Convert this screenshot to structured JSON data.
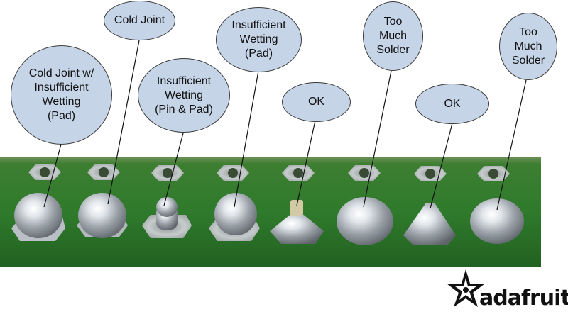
{
  "labels": [
    {
      "id": "cold-joint-wetting-pad",
      "text": "Cold Joint w/\nInsufficient\nWetting\n(Pad)"
    },
    {
      "id": "cold-joint",
      "text": "Cold Joint"
    },
    {
      "id": "insufficient-wetting-pin-pad",
      "text": "Insufficient\nWetting\n(Pin & Pad)"
    },
    {
      "id": "insufficient-wetting-pad",
      "text": "Insufficient\nWetting\n(Pad)"
    },
    {
      "id": "ok-1",
      "text": "OK"
    },
    {
      "id": "too-much-solder-1",
      "text": "Too\nMuch\nSolder"
    },
    {
      "id": "ok-2",
      "text": "OK"
    },
    {
      "id": "too-much-solder-2",
      "text": "Too\nMuch\nSolder"
    }
  ],
  "brand": {
    "name": "adafruit"
  },
  "colors": {
    "board": "#2f7a2c",
    "label_fill": "#c6d4e8",
    "solder": "#c7ccd2"
  }
}
